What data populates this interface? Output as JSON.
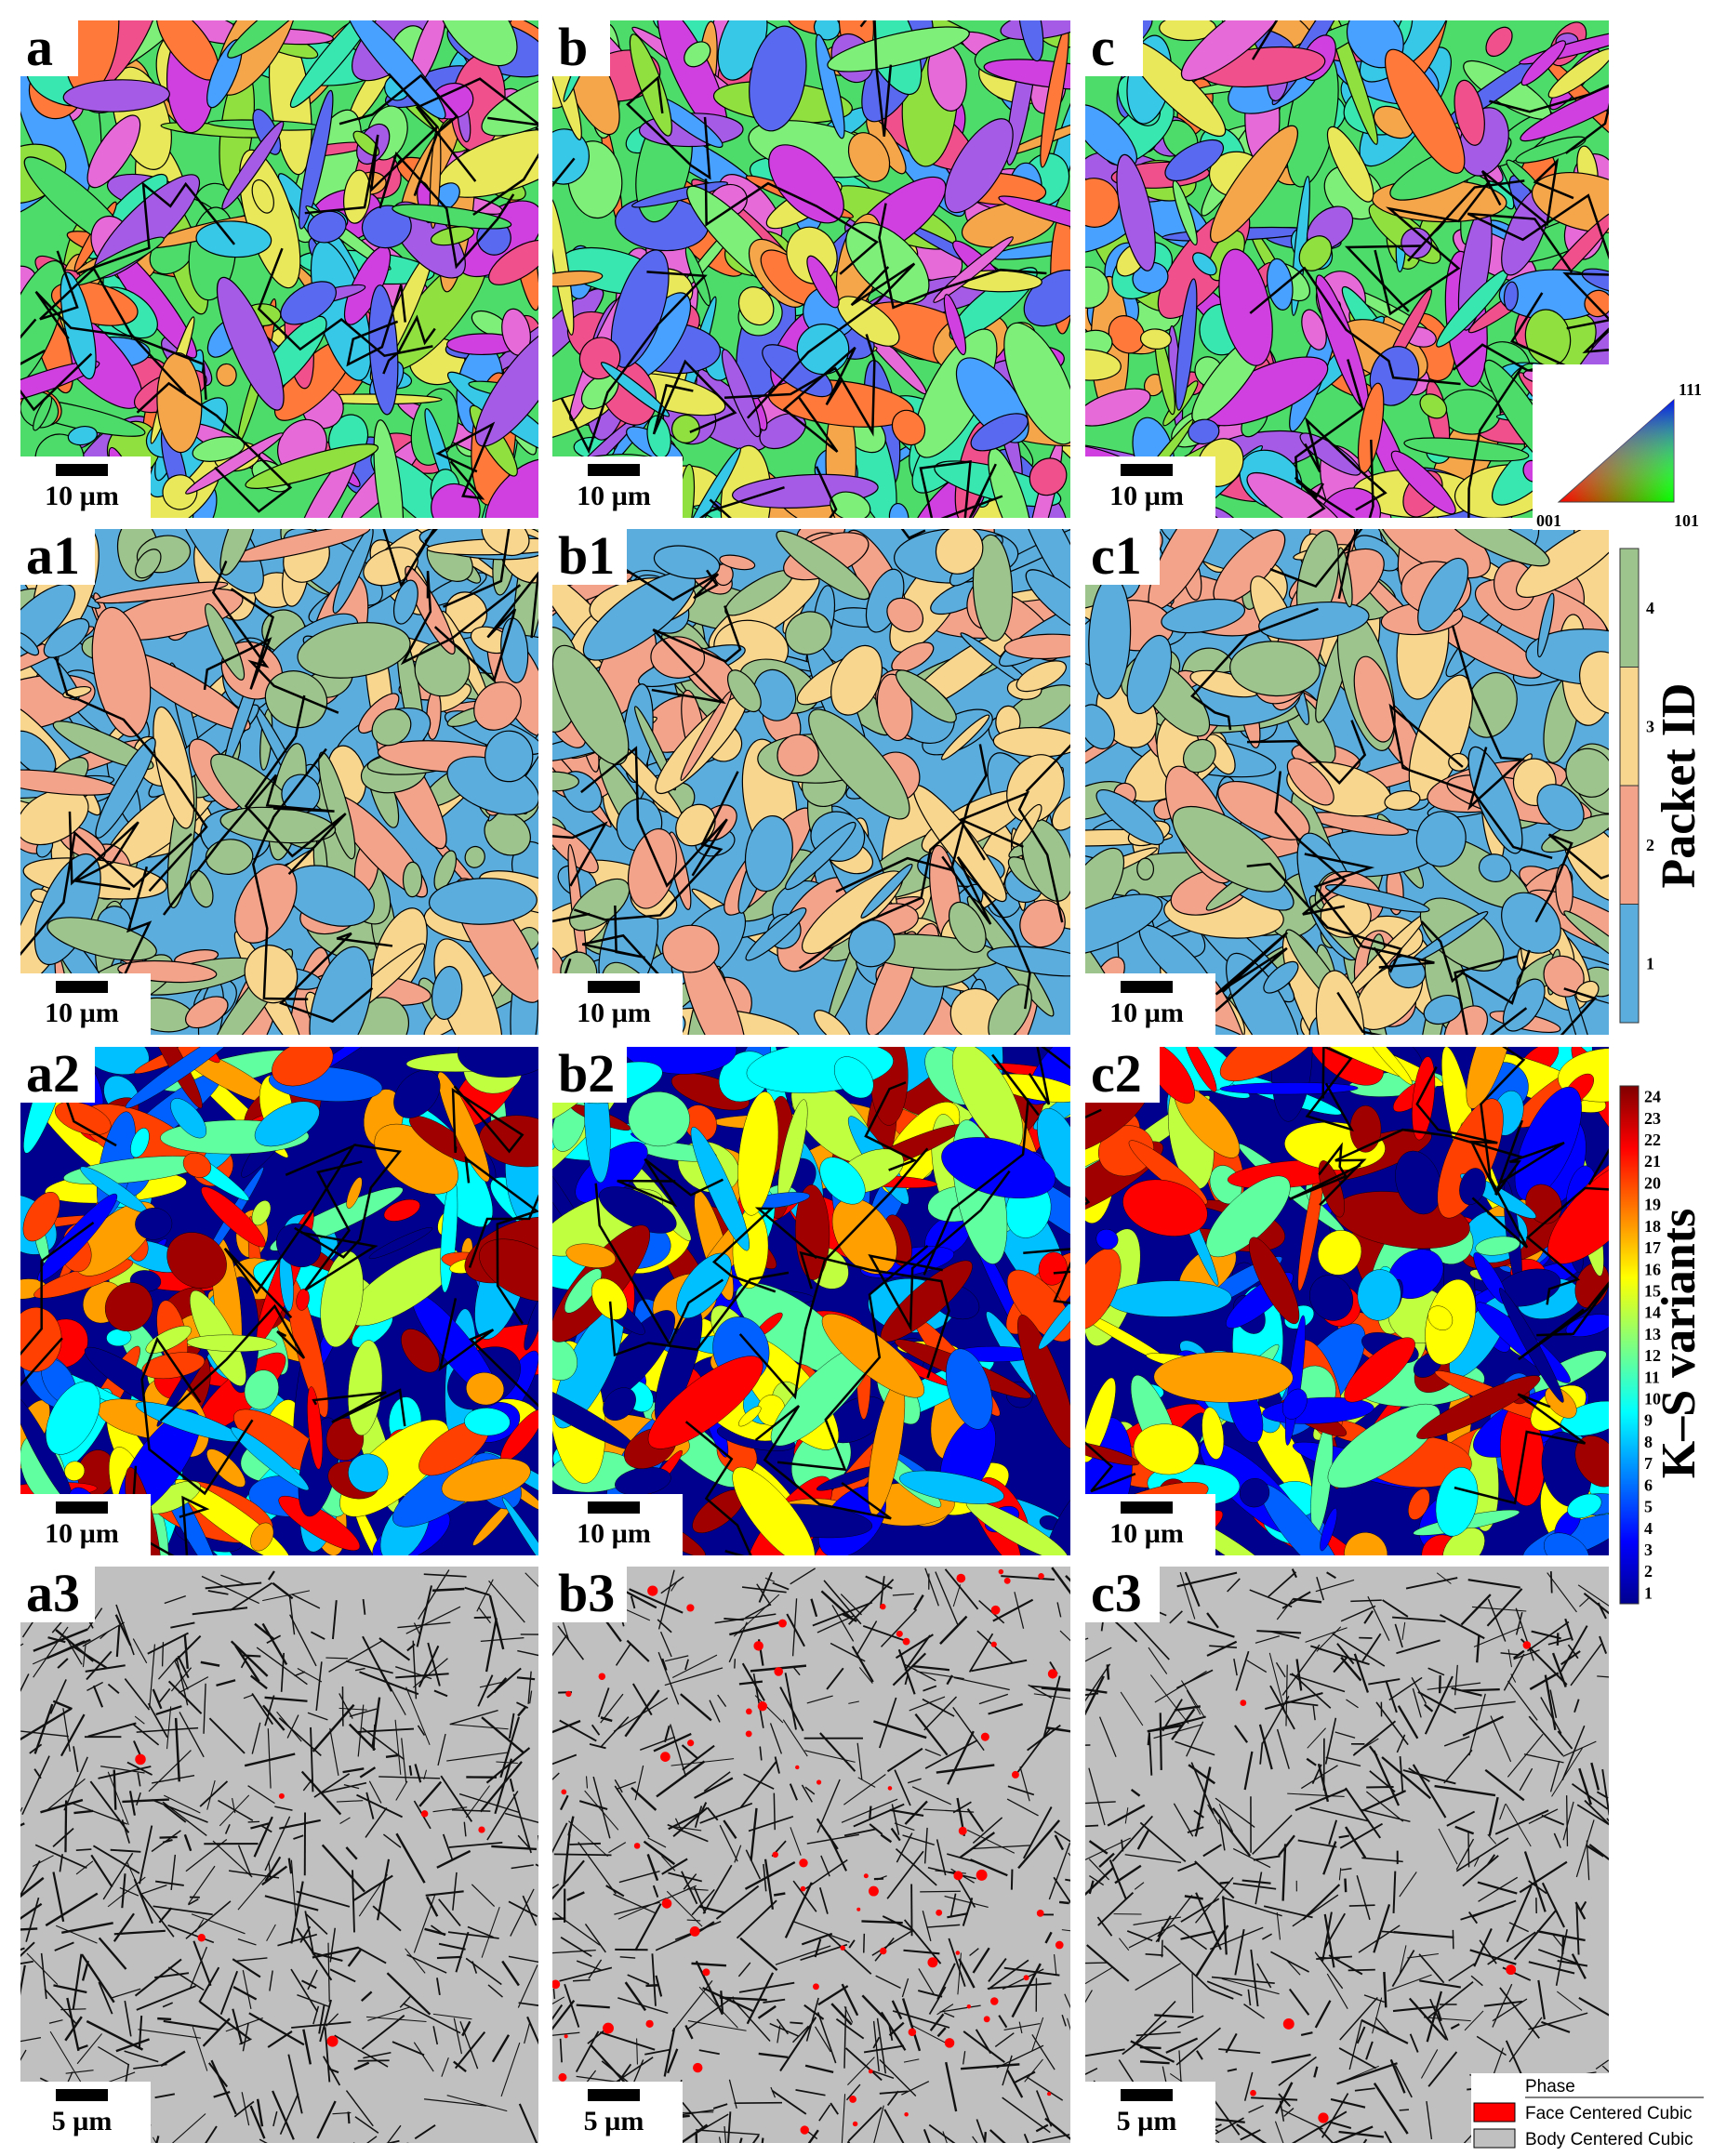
{
  "panels": [
    {
      "label": "a",
      "scale_bar": "10 µm"
    },
    {
      "label": "b",
      "scale_bar": "10 µm"
    },
    {
      "label": "c",
      "scale_bar": "10 µm"
    },
    {
      "label": "a1",
      "scale_bar": "10 µm"
    },
    {
      "label": "b1",
      "scale_bar": "10 µm"
    },
    {
      "label": "c1",
      "scale_bar": "10 µm"
    },
    {
      "label": "a2",
      "scale_bar": "10 µm"
    },
    {
      "label": "b2",
      "scale_bar": "10 µm"
    },
    {
      "label": "c2",
      "scale_bar": "10 µm"
    },
    {
      "label": "a3",
      "scale_bar": "5 µm"
    },
    {
      "label": "b3",
      "scale_bar": "5 µm"
    },
    {
      "label": "c3",
      "scale_bar": "5 µm"
    }
  ],
  "ipf_key": {
    "labels": [
      "111",
      "001",
      "101"
    ]
  },
  "packet_legend": {
    "title": "Packet ID",
    "ticks": [
      "1",
      "2",
      "3",
      "4"
    ]
  },
  "ks_legend": {
    "title": "K–S variants",
    "ticks": [
      "1",
      "2",
      "3",
      "4",
      "5",
      "6",
      "7",
      "8",
      "9",
      "10",
      "11",
      "12",
      "13",
      "14",
      "15",
      "16",
      "17",
      "18",
      "19",
      "20",
      "21",
      "22",
      "23",
      "24"
    ]
  },
  "phase_legend": {
    "title": "Phase",
    "entries": [
      "Face Centered Cubic",
      "Body Centered Cubic"
    ]
  }
}
